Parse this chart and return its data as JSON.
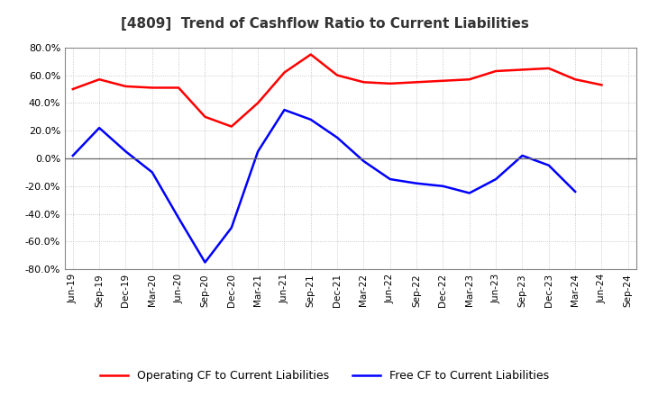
{
  "title": "[4809]  Trend of Cashflow Ratio to Current Liabilities",
  "x_labels": [
    "Jun-19",
    "Sep-19",
    "Dec-19",
    "Mar-20",
    "Jun-20",
    "Sep-20",
    "Dec-20",
    "Mar-21",
    "Jun-21",
    "Sep-21",
    "Dec-21",
    "Mar-22",
    "Jun-22",
    "Sep-22",
    "Dec-22",
    "Mar-23",
    "Jun-23",
    "Sep-23",
    "Dec-23",
    "Mar-24",
    "Jun-24",
    "Sep-24"
  ],
  "operating_cf": [
    50.0,
    57.0,
    52.0,
    51.0,
    51.0,
    30.0,
    23.0,
    40.0,
    62.0,
    75.0,
    60.0,
    55.0,
    54.0,
    55.0,
    56.0,
    57.0,
    63.0,
    64.0,
    65.0,
    57.0,
    53.0,
    null
  ],
  "free_cf": [
    2.0,
    22.0,
    5.0,
    -10.0,
    -43.0,
    -75.0,
    -50.0,
    5.0,
    35.0,
    28.0,
    15.0,
    -2.0,
    -15.0,
    -18.0,
    -20.0,
    -25.0,
    -15.0,
    2.0,
    -5.0,
    -24.0,
    null,
    null
  ],
  "ylim": [
    -80.0,
    80.0
  ],
  "yticks": [
    -80.0,
    -60.0,
    -40.0,
    -20.0,
    0.0,
    20.0,
    40.0,
    60.0,
    80.0
  ],
  "operating_color": "#ff0000",
  "free_color": "#0000ff",
  "background_color": "#ffffff",
  "legend_op": "Operating CF to Current Liabilities",
  "legend_free": "Free CF to Current Liabilities"
}
